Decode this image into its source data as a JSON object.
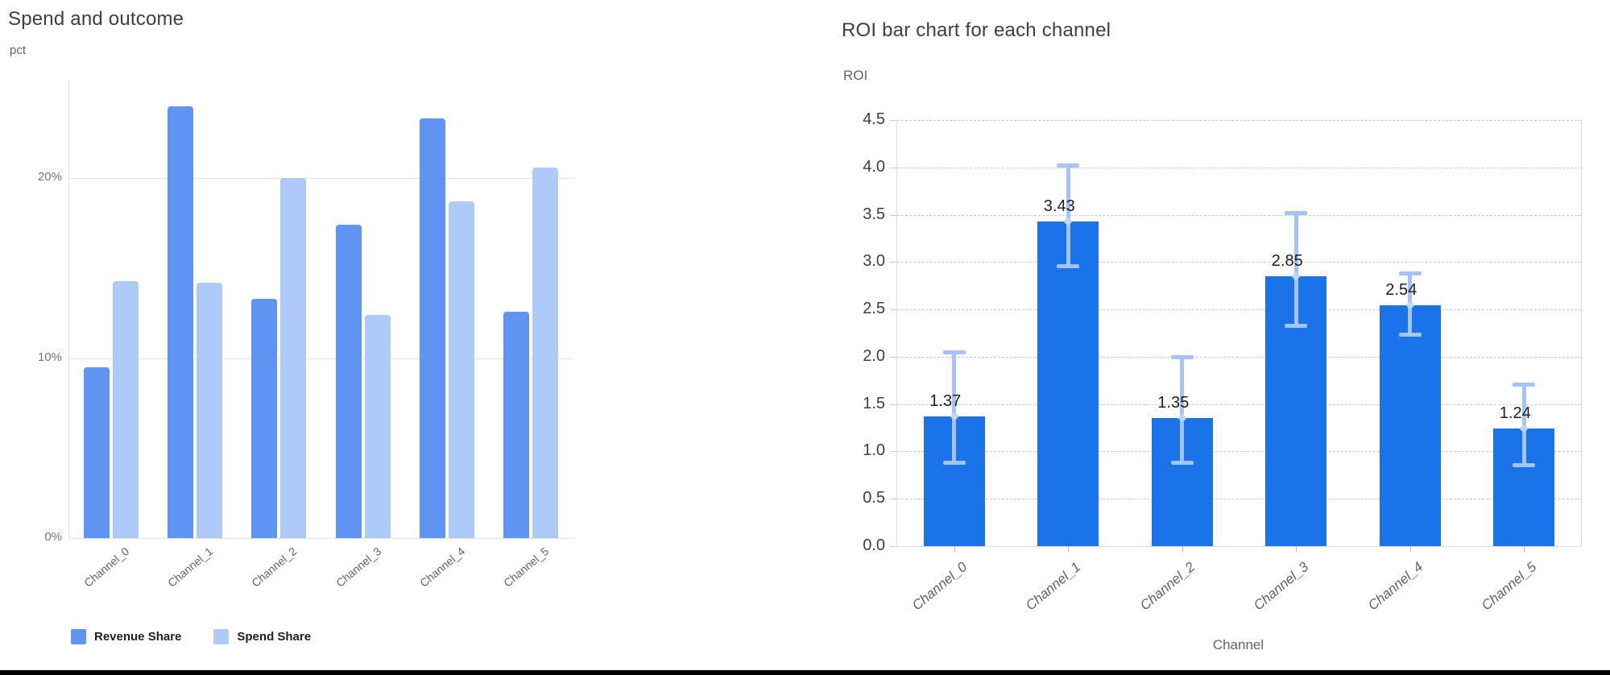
{
  "page": {
    "background_color": "#ffffff",
    "bottom_border_color": "#000000"
  },
  "chart_data": [
    {
      "id": "spend-and-outcome",
      "type": "bar",
      "title": "Spend and outcome",
      "ylabel": "pct",
      "xlabel": "",
      "categories": [
        "Channel_0",
        "Channel_1",
        "Channel_2",
        "Channel_3",
        "Channel_4",
        "Channel_5"
      ],
      "series": [
        {
          "name": "Revenue Share",
          "color": "#6094f2",
          "values": [
            9.5,
            24.0,
            13.3,
            17.4,
            23.3,
            12.6
          ]
        },
        {
          "name": "Spend Share",
          "color": "#aecaf9",
          "values": [
            14.3,
            14.2,
            20.0,
            12.4,
            18.7,
            20.6
          ]
        }
      ],
      "y_ticks": [
        {
          "label": "0%",
          "value": 0
        },
        {
          "label": "10%",
          "value": 10
        },
        {
          "label": "20%",
          "value": 20
        }
      ],
      "ylim": [
        0,
        25.4
      ],
      "grid": "horizontal-solid",
      "legend_position": "bottom-left"
    },
    {
      "id": "roi-by-channel",
      "type": "bar",
      "title": "ROI bar chart for each channel",
      "ylabel": "ROI",
      "xlabel": "Channel",
      "categories": [
        "Channel_0",
        "Channel_1",
        "Channel_2",
        "Channel_3",
        "Channel_4",
        "Channel_5"
      ],
      "values": [
        1.37,
        3.43,
        1.35,
        2.85,
        2.54,
        1.24
      ],
      "value_labels": [
        "1.37",
        "3.43",
        "1.35",
        "2.85",
        "2.54",
        "1.24"
      ],
      "error_low": [
        0.88,
        2.95,
        0.88,
        2.32,
        2.23,
        0.85
      ],
      "error_high": [
        2.05,
        4.02,
        2.0,
        3.52,
        2.88,
        1.71
      ],
      "bar_color": "#1a73e8",
      "error_color": "#a4c4f9",
      "error_marker_color": "#bdd4fb",
      "y_ticks": [
        {
          "label": "0.0",
          "value": 0.0
        },
        {
          "label": "0.5",
          "value": 0.5
        },
        {
          "label": "1.0",
          "value": 1.0
        },
        {
          "label": "1.5",
          "value": 1.5
        },
        {
          "label": "2.0",
          "value": 2.0
        },
        {
          "label": "2.5",
          "value": 2.5
        },
        {
          "label": "3.0",
          "value": 3.0
        },
        {
          "label": "3.5",
          "value": 3.5
        },
        {
          "label": "4.0",
          "value": 4.0
        },
        {
          "label": "4.5",
          "value": 4.5
        }
      ],
      "ylim": [
        0,
        4.5
      ],
      "grid": "horizontal-dashed",
      "legend_position": "none"
    }
  ]
}
